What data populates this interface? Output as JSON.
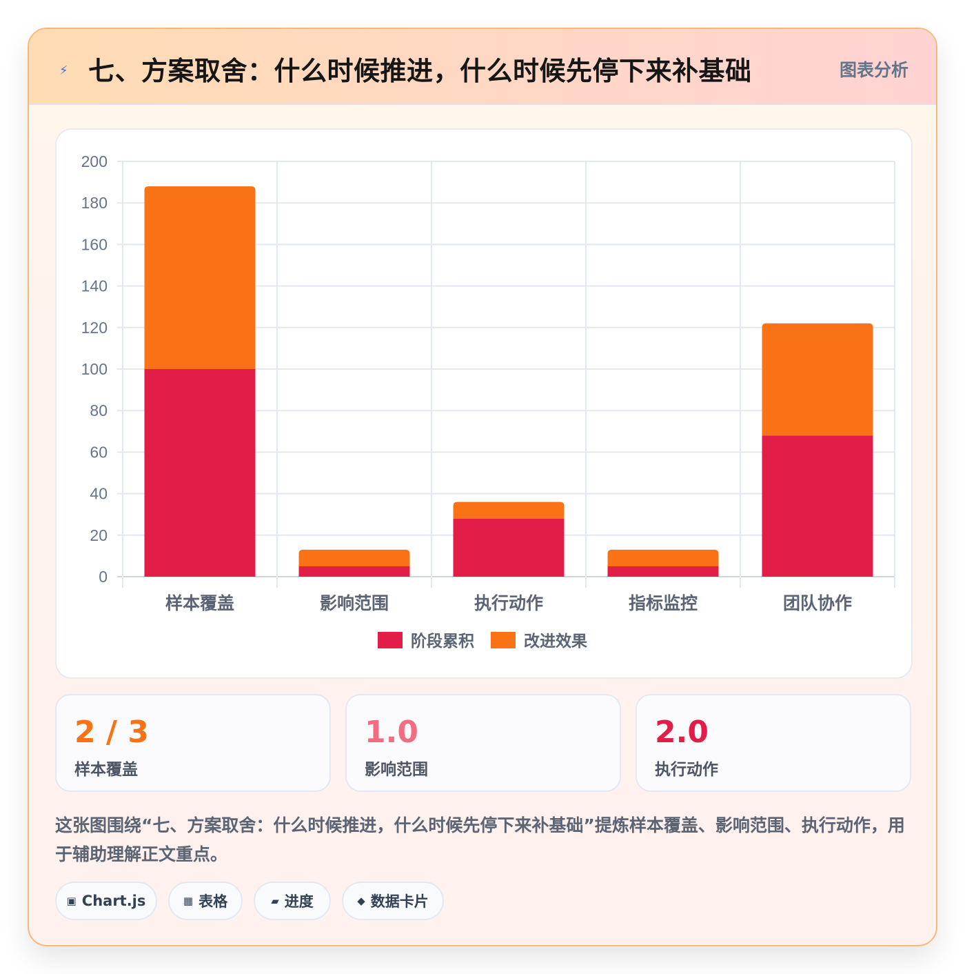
{
  "header": {
    "icon": "lightning-icon",
    "title": "七、方案取舍：什么时候推进，什么时候先停下来补基础",
    "tag": "图表分析"
  },
  "chart_data": {
    "type": "bar",
    "stacked": true,
    "categories": [
      "样本覆盖",
      "影响范围",
      "执行动作",
      "指标监控",
      "团队协作"
    ],
    "series": [
      {
        "name": "阶段累积",
        "color": "#e11d48",
        "values": [
          100,
          5,
          28,
          5,
          68
        ]
      },
      {
        "name": "改进效果",
        "color": "#f97316",
        "values": [
          88,
          8,
          8,
          8,
          54
        ]
      }
    ],
    "ylim": [
      0,
      200
    ],
    "yticks": [
      0,
      20,
      40,
      60,
      80,
      100,
      120,
      140,
      160,
      180,
      200
    ],
    "grid": true,
    "legend_position": "bottom"
  },
  "stats": [
    {
      "value": "2 / 3",
      "label": "样本覆盖",
      "color": "#f97316"
    },
    {
      "value": "1.0",
      "label": "影响范围",
      "color": "#f26d82"
    },
    {
      "value": "2.0",
      "label": "执行动作",
      "color": "#e11d48"
    }
  ],
  "description": "这张图围绕“七、方案取舍：什么时候推进，什么时候先停下来补基础”提炼样本覆盖、影响范围、执行动作，用于辅助理解正文重点。",
  "pills": [
    {
      "icon": "▣",
      "icon_name": "chart-icon",
      "label": "Chart.js"
    },
    {
      "icon": "▦",
      "icon_name": "table-icon",
      "label": "表格"
    },
    {
      "icon": "▰",
      "icon_name": "progress-icon",
      "label": "进度"
    },
    {
      "icon": "◆",
      "icon_name": "data-card-icon",
      "label": "数据卡片"
    }
  ]
}
